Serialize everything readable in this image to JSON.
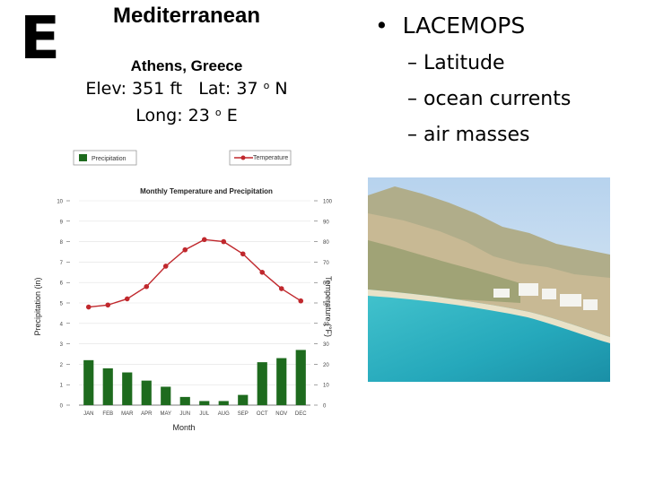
{
  "slide": {
    "letter": "E",
    "climate": "Mediterranean",
    "city": "Athens, Greece",
    "elev": "Elev: 351 ft",
    "lat_prefix": "Lat: 37",
    "lat_deg": "o",
    "lat_suffix": "N",
    "long_prefix": "Long: 23",
    "long_deg": "o",
    "long_suffix": "E"
  },
  "bullets": {
    "main": "LACEMOPS",
    "subs": [
      "Latitude",
      "ocean currents",
      "air masses"
    ]
  },
  "chart_data": {
    "type": "bar+line",
    "title": "Monthly Temperature and Precipitation",
    "xlabel": "Month",
    "ylabel_left": "Precipitation (in)",
    "ylabel_right": "Temperature (°F)",
    "categories": [
      "JAN",
      "FEB",
      "MAR",
      "APR",
      "MAY",
      "JUN",
      "JUL",
      "AUG",
      "SEP",
      "OCT",
      "NOV",
      "DEC"
    ],
    "precip_ylim": [
      0,
      10
    ],
    "temp_ylim": [
      0,
      100
    ],
    "precip_ticks": [
      "0",
      "1",
      "2",
      "3",
      "4",
      "5",
      "6",
      "7",
      "8",
      "9",
      "10"
    ],
    "temp_ticks": [
      "0",
      "10",
      "20",
      "30",
      "40",
      "50",
      "60",
      "70",
      "80",
      "90",
      "100"
    ],
    "legend": [
      "Precipitation",
      "Temperature"
    ],
    "legend_position": "top",
    "series": [
      {
        "name": "Precipitation",
        "kind": "bar",
        "color": "#1e6b1e",
        "values": [
          2.2,
          1.8,
          1.6,
          1.2,
          0.9,
          0.4,
          0.2,
          0.2,
          0.5,
          2.1,
          2.3,
          2.7
        ]
      },
      {
        "name": "Temperature",
        "kind": "line",
        "color": "#c0282d",
        "values": [
          48,
          49,
          52,
          58,
          68,
          76,
          81,
          80,
          74,
          65,
          57,
          51
        ]
      }
    ]
  },
  "photo": {
    "description_icon": "coastal-photo"
  },
  "colors": {
    "bar": "#1e6b1e",
    "line": "#c0282d",
    "sea": "#2fb6c4",
    "sky": "#c9dff2"
  }
}
